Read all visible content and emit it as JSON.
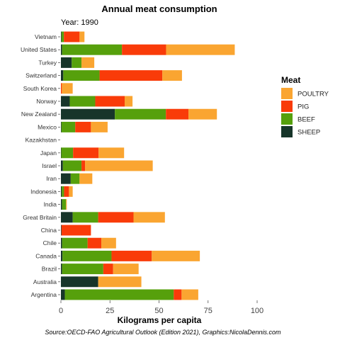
{
  "chart_data": {
    "type": "bar",
    "orientation": "horizontal",
    "stacked": true,
    "title": "Annual meat consumption",
    "subtitle": "Year: 1990",
    "xlabel": "Kilograms per capita",
    "ylabel": "",
    "xlim": [
      0,
      100
    ],
    "xticks": [
      0,
      25,
      50,
      75,
      100
    ],
    "caption": "Source:OECD-FAO Agricultural Outlook (Edition 2021), Graphics:NicolaDennis.com",
    "legend": {
      "title": "Meat",
      "position": "right"
    },
    "categories": [
      "Vietnam",
      "United States",
      "Turkey",
      "Switzerland",
      "South Korea",
      "Norway",
      "New Zealand",
      "Mexico",
      "Kazakhstan",
      "Japan",
      "Israel",
      "Iran",
      "Indonesia",
      "India",
      "Great Britain",
      "China",
      "Chile",
      "Canada",
      "Brazil",
      "Australia",
      "Argentina"
    ],
    "series": [
      {
        "name": "SHEEP",
        "color": "#17352a",
        "values": [
          0.3,
          0.6,
          5.5,
          1.2,
          0.0,
          4.5,
          27.5,
          0.3,
          0,
          0.2,
          1.0,
          5.0,
          0.4,
          0.6,
          6.0,
          0.3,
          0.6,
          0.8,
          0.6,
          19.0,
          2.0
        ]
      },
      {
        "name": "BEEF",
        "color": "#56a00c",
        "values": [
          1.2,
          30.5,
          5.0,
          18.5,
          0.0,
          13.0,
          26.0,
          7.0,
          0,
          6.0,
          9.5,
          4.5,
          1.2,
          2.0,
          13.0,
          0.0,
          13.0,
          25.0,
          21.0,
          0,
          55.5
        ]
      },
      {
        "name": "PIG",
        "color": "#f93b09",
        "values": [
          8.0,
          22.5,
          0.0,
          32.0,
          0.5,
          15.0,
          11.5,
          8.0,
          0,
          13.0,
          1.8,
          0.0,
          2.5,
          0.0,
          18.0,
          15.0,
          7.0,
          20.5,
          5.0,
          0,
          4.0
        ]
      },
      {
        "name": "POULTRY",
        "color": "#faa531",
        "values": [
          2.5,
          35.0,
          6.5,
          10.0,
          5.5,
          4.0,
          14.5,
          8.5,
          0,
          13.0,
          34.5,
          6.5,
          1.9,
          0.4,
          16.0,
          0.0,
          7.5,
          24.5,
          13.0,
          22.0,
          8.5
        ]
      }
    ],
    "legend_order": [
      "POULTRY",
      "PIG",
      "BEEF",
      "SHEEP"
    ],
    "grid": false
  }
}
